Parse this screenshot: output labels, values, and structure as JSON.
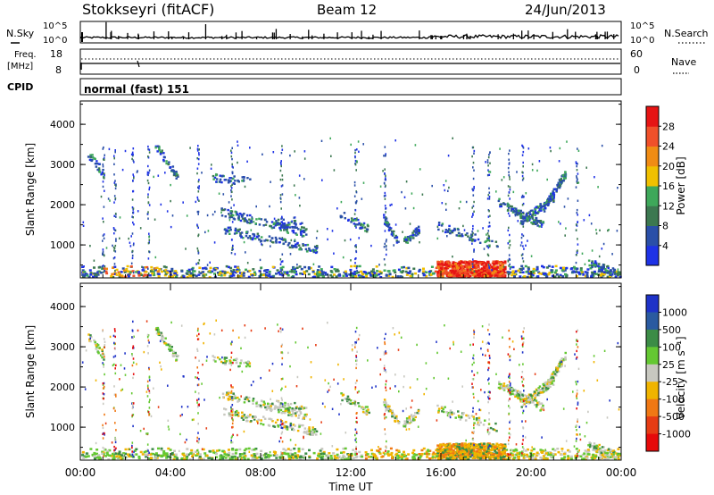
{
  "header": {
    "station": "Stokkseyri (fitACF)",
    "beam": "Beam 12",
    "date": "24/Jun/2013"
  },
  "strip_labels": {
    "nsky": "N.Sky",
    "nsky_top": "10^5",
    "nsky_bottom": "10^0",
    "nsky_right_top": "10^5",
    "nsky_right_bottom": "10^0",
    "nsearch": "N.Search",
    "freq_line1": "Freq.",
    "freq_line2": "[MHz]",
    "freq_top": "18",
    "freq_bottom": "8",
    "nave_top": "60",
    "nave_bottom": "0",
    "nave": "Nave",
    "cpid": "CPID",
    "cpid_value": "normal (fast) 151"
  },
  "chart_data": [
    {
      "type": "heatmap",
      "title": "",
      "ylabel": "Slant Range [km]",
      "yticks": [
        "1000",
        "2000",
        "3000",
        "4000"
      ],
      "ylim": [
        180,
        4580
      ],
      "xlim_hours": [
        0,
        24
      ],
      "colorbar_label": "Power [dB]",
      "colorbar_ticks": [
        "4",
        "8",
        "12",
        "16",
        "20",
        "24",
        "28"
      ],
      "colors": [
        "#1e32e6",
        "#2a4fa8",
        "#3c7850",
        "#3ea85a",
        "#f0c000",
        "#f08c14",
        "#f0502a",
        "#e61414"
      ]
    },
    {
      "type": "heatmap",
      "title": "",
      "ylabel": "Slant Range [km]",
      "yticks": [
        "1000",
        "2000",
        "3000",
        "4000"
      ],
      "ylim": [
        180,
        4580
      ],
      "xlim_hours": [
        0,
        24
      ],
      "colorbar_label": "Velocity [m s⁻¹]",
      "colorbar_ticks": [
        "1000",
        "500",
        "100",
        "25",
        "-25",
        "-100",
        "-500",
        "-1000"
      ],
      "colors": [
        "#1e32c8",
        "#2a5aa0",
        "#3c8c46",
        "#64c832",
        "#c8c8c0",
        "#f0b400",
        "#f07814",
        "#e63c14",
        "#e60a0a"
      ]
    }
  ],
  "xaxis": {
    "label": "Time UT",
    "ticks": [
      "00:00",
      "04:00",
      "08:00",
      "12:00",
      "16:00",
      "20:00",
      "00:00"
    ]
  }
}
